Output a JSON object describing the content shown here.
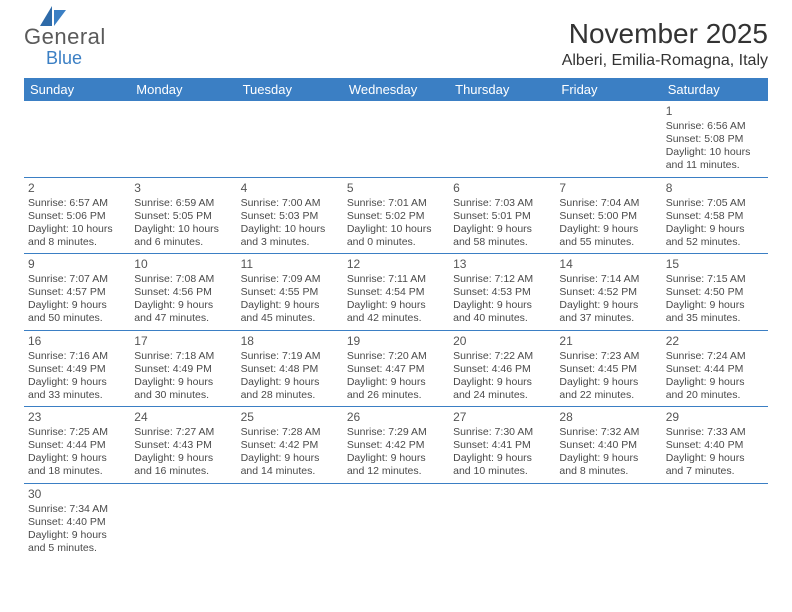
{
  "logo": {
    "general": "General",
    "blue": "Blue"
  },
  "title": "November 2025",
  "location": "Alberi, Emilia-Romagna, Italy",
  "colors": {
    "header_bg": "#3b7fc4",
    "header_text": "#ffffff",
    "rule": "#3b7fc4",
    "body_text": "#4a4a4a",
    "daynum_text": "#555555",
    "page_bg": "#ffffff"
  },
  "day_names": [
    "Sunday",
    "Monday",
    "Tuesday",
    "Wednesday",
    "Thursday",
    "Friday",
    "Saturday"
  ],
  "weeks": [
    [
      null,
      null,
      null,
      null,
      null,
      null,
      {
        "n": "1",
        "sr": "6:56 AM",
        "ss": "5:08 PM",
        "dl": "10 hours and 11 minutes."
      }
    ],
    [
      {
        "n": "2",
        "sr": "6:57 AM",
        "ss": "5:06 PM",
        "dl": "10 hours and 8 minutes."
      },
      {
        "n": "3",
        "sr": "6:59 AM",
        "ss": "5:05 PM",
        "dl": "10 hours and 6 minutes."
      },
      {
        "n": "4",
        "sr": "7:00 AM",
        "ss": "5:03 PM",
        "dl": "10 hours and 3 minutes."
      },
      {
        "n": "5",
        "sr": "7:01 AM",
        "ss": "5:02 PM",
        "dl": "10 hours and 0 minutes."
      },
      {
        "n": "6",
        "sr": "7:03 AM",
        "ss": "5:01 PM",
        "dl": "9 hours and 58 minutes."
      },
      {
        "n": "7",
        "sr": "7:04 AM",
        "ss": "5:00 PM",
        "dl": "9 hours and 55 minutes."
      },
      {
        "n": "8",
        "sr": "7:05 AM",
        "ss": "4:58 PM",
        "dl": "9 hours and 52 minutes."
      }
    ],
    [
      {
        "n": "9",
        "sr": "7:07 AM",
        "ss": "4:57 PM",
        "dl": "9 hours and 50 minutes."
      },
      {
        "n": "10",
        "sr": "7:08 AM",
        "ss": "4:56 PM",
        "dl": "9 hours and 47 minutes."
      },
      {
        "n": "11",
        "sr": "7:09 AM",
        "ss": "4:55 PM",
        "dl": "9 hours and 45 minutes."
      },
      {
        "n": "12",
        "sr": "7:11 AM",
        "ss": "4:54 PM",
        "dl": "9 hours and 42 minutes."
      },
      {
        "n": "13",
        "sr": "7:12 AM",
        "ss": "4:53 PM",
        "dl": "9 hours and 40 minutes."
      },
      {
        "n": "14",
        "sr": "7:14 AM",
        "ss": "4:52 PM",
        "dl": "9 hours and 37 minutes."
      },
      {
        "n": "15",
        "sr": "7:15 AM",
        "ss": "4:50 PM",
        "dl": "9 hours and 35 minutes."
      }
    ],
    [
      {
        "n": "16",
        "sr": "7:16 AM",
        "ss": "4:49 PM",
        "dl": "9 hours and 33 minutes."
      },
      {
        "n": "17",
        "sr": "7:18 AM",
        "ss": "4:49 PM",
        "dl": "9 hours and 30 minutes."
      },
      {
        "n": "18",
        "sr": "7:19 AM",
        "ss": "4:48 PM",
        "dl": "9 hours and 28 minutes."
      },
      {
        "n": "19",
        "sr": "7:20 AM",
        "ss": "4:47 PM",
        "dl": "9 hours and 26 minutes."
      },
      {
        "n": "20",
        "sr": "7:22 AM",
        "ss": "4:46 PM",
        "dl": "9 hours and 24 minutes."
      },
      {
        "n": "21",
        "sr": "7:23 AM",
        "ss": "4:45 PM",
        "dl": "9 hours and 22 minutes."
      },
      {
        "n": "22",
        "sr": "7:24 AM",
        "ss": "4:44 PM",
        "dl": "9 hours and 20 minutes."
      }
    ],
    [
      {
        "n": "23",
        "sr": "7:25 AM",
        "ss": "4:44 PM",
        "dl": "9 hours and 18 minutes."
      },
      {
        "n": "24",
        "sr": "7:27 AM",
        "ss": "4:43 PM",
        "dl": "9 hours and 16 minutes."
      },
      {
        "n": "25",
        "sr": "7:28 AM",
        "ss": "4:42 PM",
        "dl": "9 hours and 14 minutes."
      },
      {
        "n": "26",
        "sr": "7:29 AM",
        "ss": "4:42 PM",
        "dl": "9 hours and 12 minutes."
      },
      {
        "n": "27",
        "sr": "7:30 AM",
        "ss": "4:41 PM",
        "dl": "9 hours and 10 minutes."
      },
      {
        "n": "28",
        "sr": "7:32 AM",
        "ss": "4:40 PM",
        "dl": "9 hours and 8 minutes."
      },
      {
        "n": "29",
        "sr": "7:33 AM",
        "ss": "4:40 PM",
        "dl": "9 hours and 7 minutes."
      }
    ],
    [
      {
        "n": "30",
        "sr": "7:34 AM",
        "ss": "4:40 PM",
        "dl": "9 hours and 5 minutes."
      },
      null,
      null,
      null,
      null,
      null,
      null
    ]
  ],
  "labels": {
    "sunrise": "Sunrise:",
    "sunset": "Sunset:",
    "daylight": "Daylight:"
  }
}
